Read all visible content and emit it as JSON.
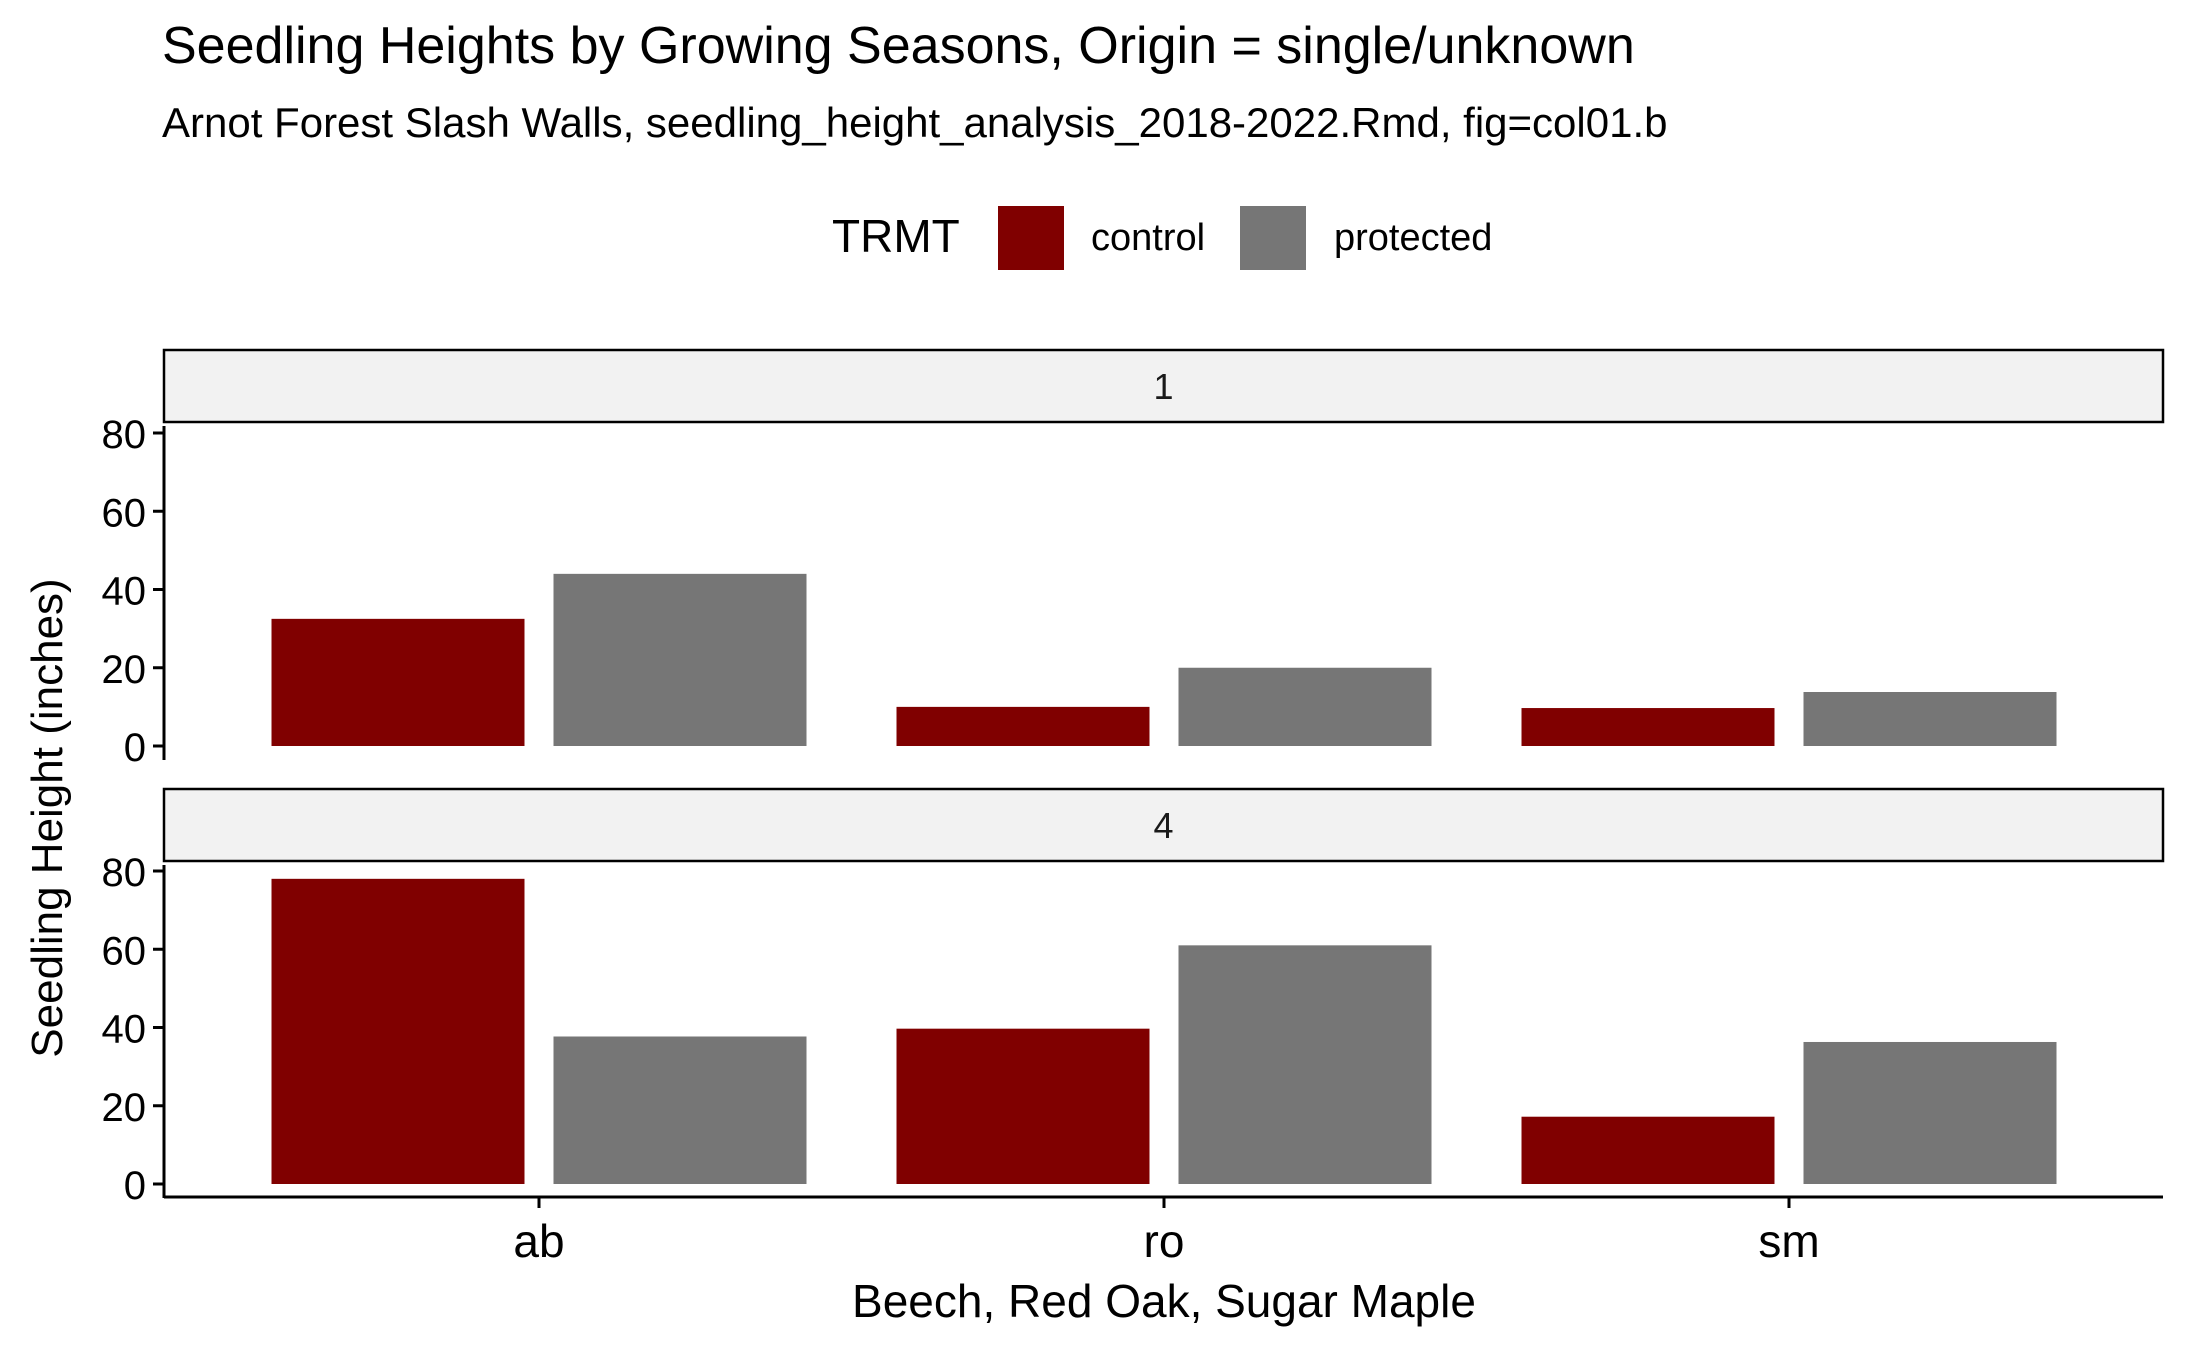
{
  "chart_data": {
    "type": "bar",
    "title": "Seedling Heights by Growing Seasons, Origin = single/unknown",
    "subtitle": "Arnot Forest Slash Walls, seedling_height_analysis_2018-2022.Rmd, fig=col01.b",
    "xlabel": "Beech, Red Oak, Sugar Maple",
    "ylabel": "Seedling Height (inches)",
    "ylim": [
      0,
      80
    ],
    "yticks": [
      0,
      20,
      40,
      60,
      80
    ],
    "categories": [
      "ab",
      "ro",
      "sm"
    ],
    "legend": {
      "title": "TRMT",
      "position": "top",
      "entries": [
        "control",
        "protected"
      ]
    },
    "series_colors": {
      "control": "#800000",
      "protected": "#767676"
    },
    "grid": false,
    "facets": [
      {
        "label": "1",
        "series": [
          {
            "name": "control",
            "values": [
              32.5,
              10,
              9.7
            ]
          },
          {
            "name": "protected",
            "values": [
              44,
              20,
              13.8
            ]
          }
        ]
      },
      {
        "label": "4",
        "series": [
          {
            "name": "control",
            "values": [
              78,
              39.7,
              17.2
            ]
          },
          {
            "name": "protected",
            "values": [
              37.7,
              61,
              36.3
            ]
          }
        ]
      }
    ]
  }
}
